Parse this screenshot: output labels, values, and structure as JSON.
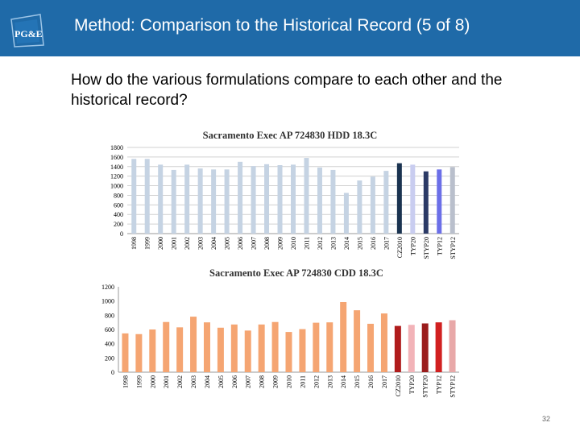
{
  "header": {
    "title": "Method: Comparison to the Historical Record (5 of 8)",
    "logo_text": "PG&E",
    "logo_color": "#1f6aa8"
  },
  "question": "How do the various formulations compare to each other and the historical record?",
  "page_number": "32",
  "chart_data": [
    {
      "type": "bar",
      "title": "Sacramento Exec AP 724830 HDD 18.3C",
      "categories": [
        "1998",
        "1999",
        "2000",
        "2001",
        "2002",
        "2003",
        "2004",
        "2005",
        "2006",
        "2007",
        "2008",
        "2009",
        "2010",
        "2011",
        "2012",
        "2013",
        "2014",
        "2015",
        "2016",
        "2017",
        "CZ2010",
        "TYP20",
        "STYP20",
        "TYP12",
        "STYP12"
      ],
      "values": [
        1560,
        1560,
        1440,
        1330,
        1440,
        1360,
        1340,
        1340,
        1500,
        1410,
        1450,
        1430,
        1440,
        1580,
        1380,
        1330,
        850,
        1110,
        1190,
        1310,
        1470,
        1440,
        1300,
        1340,
        1390
      ],
      "colors": [
        "#c5d3e3",
        "#c5d3e3",
        "#c5d3e3",
        "#c5d3e3",
        "#c5d3e3",
        "#c5d3e3",
        "#c5d3e3",
        "#c5d3e3",
        "#c5d3e3",
        "#c5d3e3",
        "#c5d3e3",
        "#c5d3e3",
        "#c5d3e3",
        "#c5d3e3",
        "#c5d3e3",
        "#c5d3e3",
        "#c5d3e3",
        "#c5d3e3",
        "#c5d3e3",
        "#c5d3e3",
        "#1a3350",
        "#c9cdf0",
        "#2b3a66",
        "#6b6fe8",
        "#b9bfcc"
      ],
      "ylim": [
        0,
        1800
      ],
      "yticks": [
        "0",
        "200",
        "400",
        "600",
        "800",
        "1000",
        "1200",
        "1400",
        "1600",
        "1800"
      ],
      "grid": true
    },
    {
      "type": "bar",
      "title": "Sacramento Exec AP 724830 CDD 18.3C",
      "categories": [
        "1998",
        "1999",
        "2000",
        "2001",
        "2002",
        "2003",
        "2004",
        "2005",
        "2006",
        "2007",
        "2008",
        "2009",
        "2010",
        "2011",
        "2012",
        "2013",
        "2014",
        "2015",
        "2016",
        "2017",
        "CZ2010",
        "TYP20",
        "STYP20",
        "TYP12",
        "STYP12"
      ],
      "values": [
        545,
        535,
        600,
        705,
        630,
        780,
        700,
        625,
        670,
        585,
        670,
        705,
        565,
        605,
        695,
        700,
        985,
        870,
        680,
        825,
        650,
        665,
        685,
        700,
        730
      ],
      "colors": [
        "#f5a572",
        "#f5a572",
        "#f5a572",
        "#f5a572",
        "#f5a572",
        "#f5a572",
        "#f5a572",
        "#f5a572",
        "#f5a572",
        "#f5a572",
        "#f5a572",
        "#f5a572",
        "#f5a572",
        "#f5a572",
        "#f5a572",
        "#f5a572",
        "#f5a572",
        "#f5a572",
        "#f5a572",
        "#f5a572",
        "#b01c1c",
        "#f2b3b8",
        "#9a1c1c",
        "#d12020",
        "#e8a8a8"
      ],
      "ylim": [
        0,
        1200
      ],
      "yticks": [
        "0",
        "200",
        "400",
        "600",
        "800",
        "1000",
        "1200"
      ],
      "grid": false
    }
  ]
}
